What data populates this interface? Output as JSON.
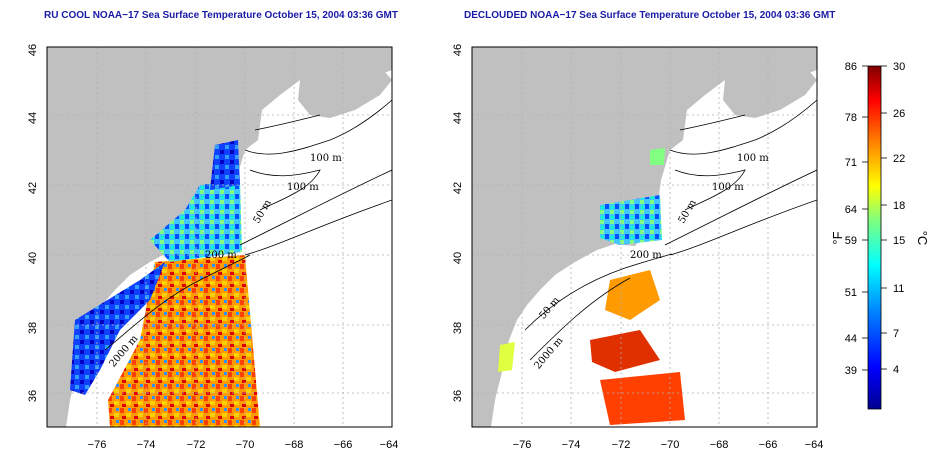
{
  "panels": [
    {
      "title": "RU COOL NOAA−17 Sea Surface Temperature October 15, 2004 03:36 GMT",
      "lat_ticks": [
        "46",
        "44",
        "42",
        "40",
        "38",
        "36"
      ],
      "lon_ticks": [
        "−76",
        "−74",
        "−72",
        "−70",
        "−68",
        "−66",
        "−64"
      ],
      "contour_labels": [
        "100 m",
        "100 m",
        "50 m",
        "200 m",
        "2000 m"
      ]
    },
    {
      "title": "DECLOUDED NOAA−17 Sea Surface Temperature October 15, 2004 03:36 GMT",
      "lat_ticks": [
        "46",
        "44",
        "42",
        "40",
        "38",
        "36"
      ],
      "lon_ticks": [
        "−76",
        "−74",
        "−72",
        "−70",
        "−68",
        "−66",
        "−64"
      ],
      "contour_labels": [
        "100 m",
        "100 m",
        "50 m",
        "200 m",
        "50 m",
        "2000 m"
      ]
    }
  ],
  "colorbar": {
    "fahrenheit_unit": "°F",
    "celsius_unit": "°C",
    "fahrenheit_ticks": [
      "86",
      "78",
      "71",
      "64",
      "59",
      "51",
      "44",
      "39"
    ],
    "celsius_ticks": [
      "30",
      "26",
      "22",
      "18",
      "15",
      "11",
      "7",
      "4"
    ],
    "colors": [
      "#00008f",
      "#0000ff",
      "#0080ff",
      "#00ffff",
      "#80ff80",
      "#ffff00",
      "#ff8000",
      "#ff0000",
      "#800000"
    ]
  },
  "colors": {
    "land": "#c0c0c0",
    "ocean": "#ffffff",
    "title": "#1a1aa8",
    "grid": "#b0b0b0"
  }
}
